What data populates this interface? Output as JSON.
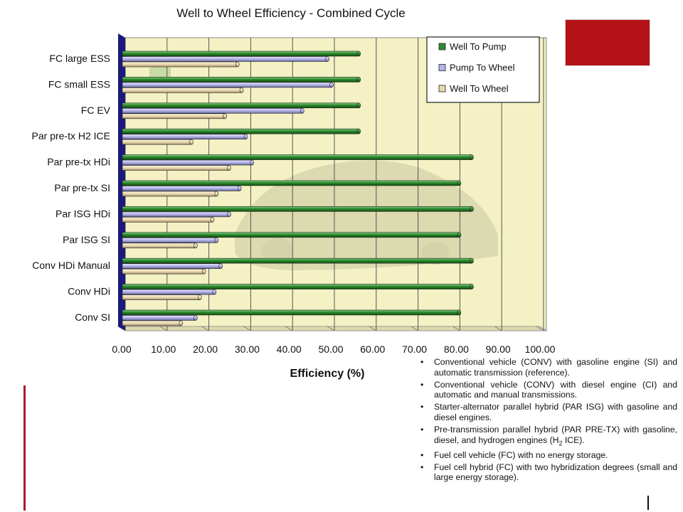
{
  "chart_data": {
    "type": "bar",
    "orientation": "horizontal",
    "title": "Well to Wheel Efficiency - Combined Cycle",
    "xlabel": "Efficiency (%)",
    "ylabel": "",
    "xlim": [
      0,
      100
    ],
    "x_ticks": [
      "0.00",
      "10.00",
      "20.00",
      "30.00",
      "40.00",
      "50.00",
      "60.00",
      "70.00",
      "80.00",
      "90.00",
      "100.00"
    ],
    "grid": true,
    "legend_position": "top-right",
    "categories": [
      "FC large ESS",
      "FC small ESS",
      "FC EV",
      "Par pre-tx H2 ICE",
      "Par pre-tx HDi",
      "Par pre-tx SI",
      "Par ISG HDi",
      "Par ISG SI",
      "Conv HDi Manual",
      "Conv HDi",
      "Conv SI"
    ],
    "series": [
      {
        "name": "Well To Pump",
        "color": "#2e8b2e",
        "values": [
          56.5,
          56.5,
          56.5,
          56.5,
          83.5,
          80.5,
          83.5,
          80.5,
          83.5,
          83.5,
          80.5
        ]
      },
      {
        "name": "Pump To Wheel",
        "color": "#b3b3e6",
        "values": [
          49,
          50,
          43,
          29.5,
          31,
          28,
          25.5,
          22.5,
          23.5,
          22,
          17.5
        ]
      },
      {
        "name": "Well To Wheel",
        "color": "#ead9b0",
        "values": [
          27.5,
          28.5,
          24.5,
          16.5,
          25.5,
          22.5,
          21.5,
          17.5,
          19.5,
          18.5,
          14
        ]
      }
    ]
  },
  "notes": [
    "Conventional vehicle (CONV) with gasoline engine (SI) and automatic transmission (reference).",
    "Conventional vehicle (CONV) with diesel engine (CI) and automatic and manual transmissions.",
    "Starter-alternator parallel hybrid (PAR ISG) with gasoline and diesel engines.",
    "Pre-transmission parallel hybrid (PAR PRE-TX) with gasoline, diesel, and hydrogen engines (H2 ICE).",
    "Fuel cell vehicle (FC) with no energy storage.",
    "Fuel cell hybrid (FC) with two hybridization degrees (small and large energy storage)."
  ],
  "colors": {
    "plot_background": "#f4f1c4",
    "left_wall": "#1a1a7a",
    "accent_red": "#b51217",
    "rule_red": "#a31f24"
  }
}
